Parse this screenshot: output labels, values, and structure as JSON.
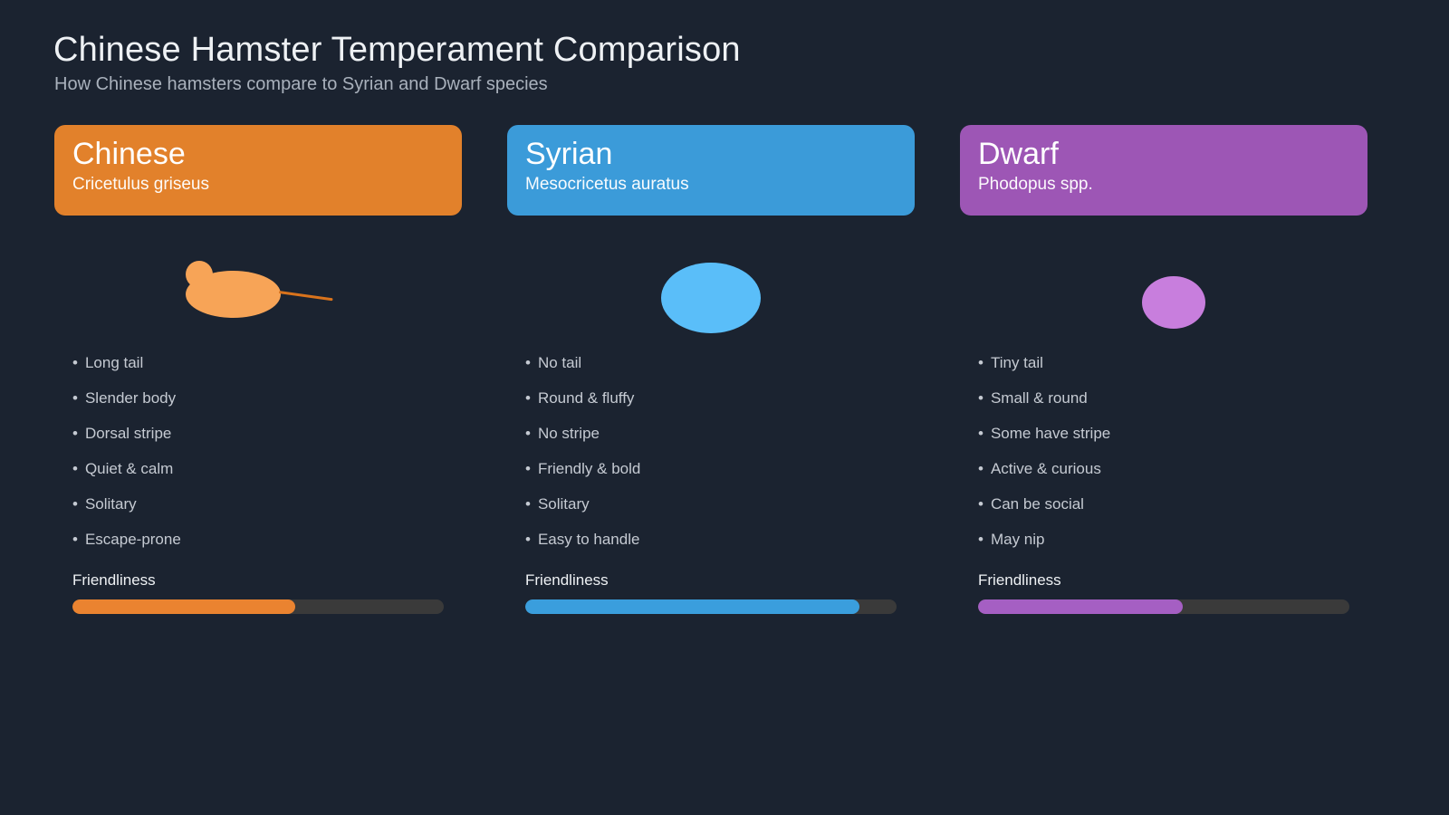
{
  "page": {
    "title": "Chinese Hamster Temperament Comparison",
    "subtitle": "How Chinese hamsters compare to Syrian and Dwarf species",
    "background_color": "#1b2330"
  },
  "bullet_glyph": "•",
  "friendliness_label": "Friendliness",
  "colors": {
    "bar_track": "#3a3a3a",
    "title_text": "#eef1f4",
    "subtitle_text": "#a9b1bc",
    "trait_text": "#c5cad2"
  },
  "columns": [
    {
      "name": "Chinese",
      "species": "Cricetulus griseus",
      "accent_color": "#e2812b",
      "bar_color": "#ea8330",
      "illustration": {
        "kind": "chinese-hamster",
        "body_color": "#f7a457",
        "tail_color": "#d9731c"
      },
      "traits": [
        "Long tail",
        "Slender body",
        "Dorsal stripe",
        "Quiet & calm",
        "Solitary",
        "Escape-prone"
      ],
      "friendliness_percent": 60
    },
    {
      "name": "Syrian",
      "species": "Mesocricetus auratus",
      "accent_color": "#3b9bd9",
      "bar_color": "#3a9edd",
      "illustration": {
        "kind": "syrian-hamster",
        "body_color": "#5abef9"
      },
      "traits": [
        "No tail",
        "Round & fluffy",
        "No stripe",
        "Friendly & bold",
        "Solitary",
        "Easy to handle"
      ],
      "friendliness_percent": 90
    },
    {
      "name": "Dwarf",
      "species": "Phodopus spp.",
      "accent_color": "#9d56b5",
      "bar_color": "#a55fc3",
      "illustration": {
        "kind": "dwarf-hamster",
        "body_color": "#c87edd"
      },
      "traits": [
        "Tiny tail",
        "Small & round",
        "Some have stripe",
        "Active & curious",
        "Can be social",
        "May nip"
      ],
      "friendliness_percent": 55
    }
  ],
  "chart_data": {
    "type": "bar",
    "title": "Chinese Hamster Temperament Comparison",
    "subtitle": "How Chinese hamsters compare to Syrian and Dwarf species",
    "categories": [
      "Chinese",
      "Syrian",
      "Dwarf"
    ],
    "series": [
      {
        "name": "Friendliness",
        "values": [
          60,
          90,
          55
        ]
      }
    ],
    "ylim": [
      0,
      100
    ],
    "legend_position": "none",
    "grid": false
  }
}
